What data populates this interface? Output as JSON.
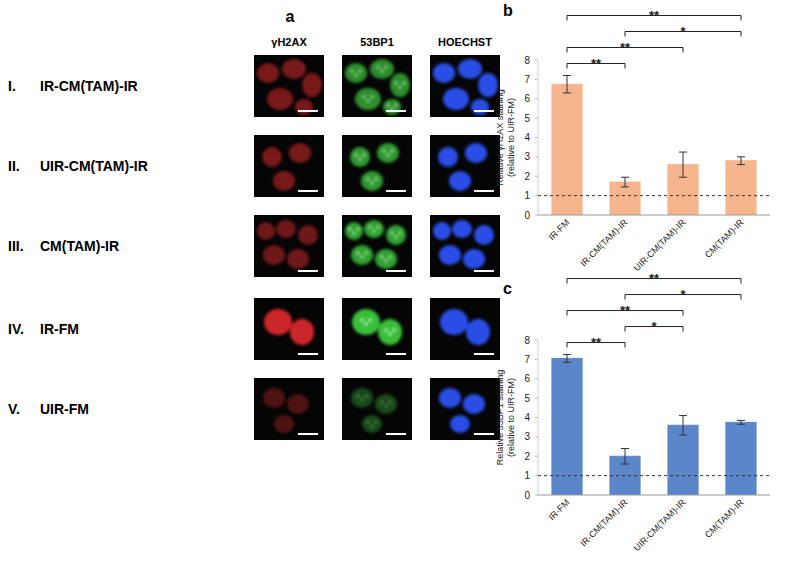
{
  "image_panel": {
    "letter": "a",
    "columns": [
      "γH2AX",
      "53BP1",
      "HOECHST"
    ],
    "rows": [
      {
        "numeral": "I.",
        "label": "IR-CM(TAM)-IR"
      },
      {
        "numeral": "II.",
        "label": "UIR-CM(TAM)-IR"
      },
      {
        "numeral": "III.",
        "label": "CM(TAM)-IR"
      },
      {
        "numeral": "IV.",
        "label": "IR-FM"
      },
      {
        "numeral": "V.",
        "label": "UIR-FM"
      }
    ]
  },
  "chart_data": [
    {
      "type": "bar",
      "panel": "b",
      "y_label": "Relative γH2AX staining (relative to UIR-FM)",
      "categories": [
        "IR-FM",
        "IR-CM(TAM)-IR",
        "UIR-CM(TAM)-IR",
        "CM(TAM)-IR"
      ],
      "values": [
        6.75,
        1.7,
        2.6,
        2.8
      ],
      "errors": [
        0.45,
        0.25,
        0.65,
        0.2
      ],
      "color": "#f6b58c",
      "ylim": [
        0,
        8
      ],
      "yticks": [
        0,
        1,
        2,
        3,
        4,
        5,
        6,
        7,
        8
      ],
      "grid": false,
      "reference_line": 1,
      "annotations": [
        {
          "from": "IR-FM",
          "to": "IR-CM(TAM)-IR",
          "label": "**"
        },
        {
          "from": "IR-FM",
          "to": "UIR-CM(TAM)-IR",
          "label": "**"
        },
        {
          "from": "IR-FM",
          "to": "CM(TAM)-IR",
          "label": "**"
        },
        {
          "from": "IR-CM(TAM)-IR",
          "to": "CM(TAM)-IR",
          "label": "*"
        }
      ]
    },
    {
      "type": "bar",
      "panel": "c",
      "y_label": "Relative 53BP1 staining (relative to UIR-FM)",
      "categories": [
        "IR-FM",
        "IR-CM(TAM)-IR",
        "UIR-CM(TAM)-IR",
        "CM(TAM)-IR"
      ],
      "values": [
        7.05,
        2.0,
        3.6,
        3.75
      ],
      "errors": [
        0.2,
        0.4,
        0.5,
        0.1
      ],
      "color": "#5b86c9",
      "ylim": [
        0,
        8
      ],
      "yticks": [
        0,
        1,
        2,
        3,
        4,
        5,
        6,
        7,
        8
      ],
      "grid": false,
      "reference_line": 1,
      "annotations": [
        {
          "from": "IR-FM",
          "to": "IR-CM(TAM)-IR",
          "label": "**"
        },
        {
          "from": "IR-FM",
          "to": "UIR-CM(TAM)-IR",
          "label": "**"
        },
        {
          "from": "IR-FM",
          "to": "CM(TAM)-IR",
          "label": "**"
        },
        {
          "from": "IR-CM(TAM)-IR",
          "to": "UIR-CM(TAM)-IR",
          "label": "*"
        },
        {
          "from": "IR-CM(TAM)-IR",
          "to": "CM(TAM)-IR",
          "label": "*"
        }
      ]
    }
  ]
}
